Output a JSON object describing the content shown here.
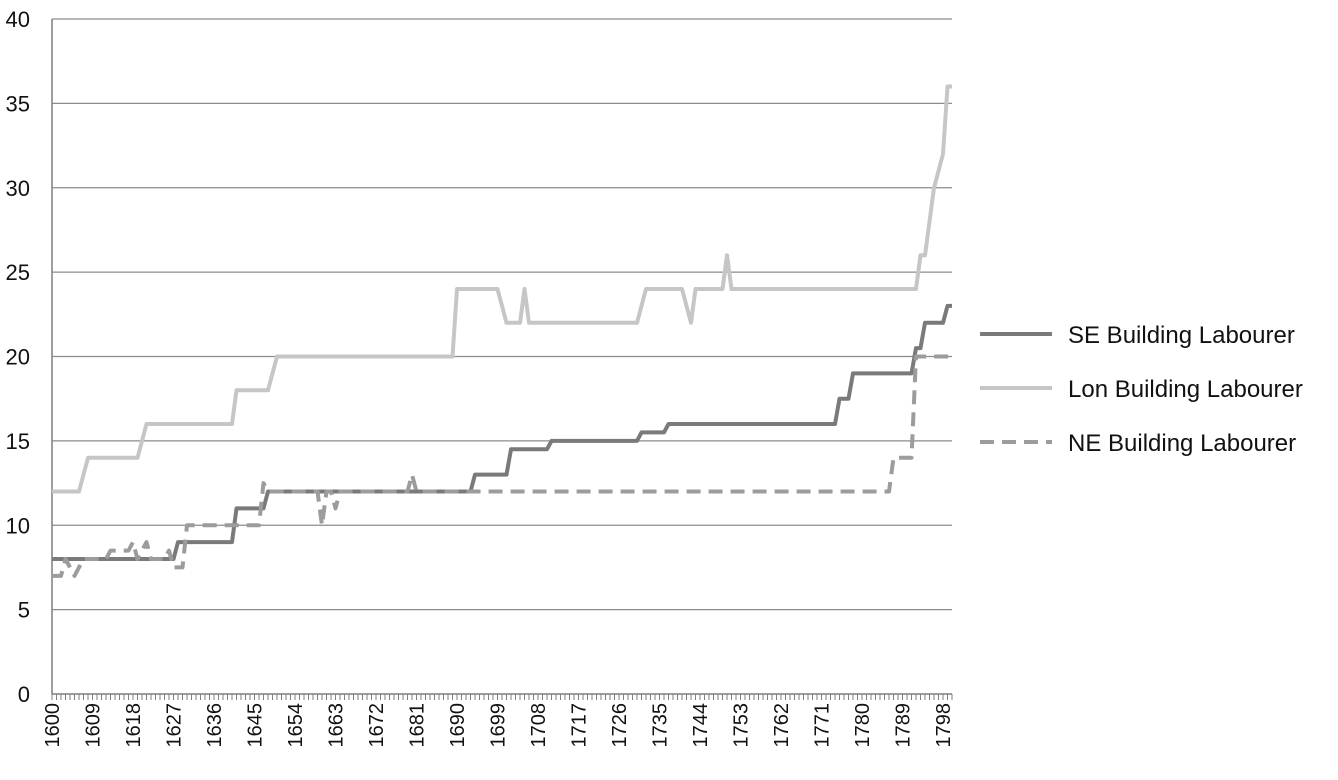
{
  "chart_data": {
    "type": "line",
    "title": "",
    "xlabel": "",
    "ylabel": "",
    "xlim": [
      1600,
      1800
    ],
    "ylim": [
      0,
      40
    ],
    "y_ticks": [
      0,
      5,
      10,
      15,
      20,
      25,
      30,
      35,
      40
    ],
    "x_tick_labels": [
      "1600",
      "1609",
      "1618",
      "1627",
      "1636",
      "1645",
      "1654",
      "1663",
      "1672",
      "1681",
      "1690",
      "1699",
      "1708",
      "1717",
      "1726",
      "1735",
      "1744",
      "1753",
      "1762",
      "1771",
      "1780",
      "1789",
      "1798"
    ],
    "grid": "horizontal",
    "legend_position": "right",
    "series": [
      {
        "name": "SE Building Labourer",
        "color": "#7a7a7a",
        "style": "solid",
        "points": [
          [
            1600,
            8
          ],
          [
            1627,
            8
          ],
          [
            1628,
            9
          ],
          [
            1640,
            9
          ],
          [
            1641,
            11
          ],
          [
            1647,
            11
          ],
          [
            1648,
            12
          ],
          [
            1693,
            12
          ],
          [
            1694,
            13
          ],
          [
            1701,
            13
          ],
          [
            1702,
            14.5
          ],
          [
            1710,
            14.5
          ],
          [
            1711,
            15
          ],
          [
            1730,
            15
          ],
          [
            1731,
            15.5
          ],
          [
            1736,
            15.5
          ],
          [
            1737,
            16
          ],
          [
            1774,
            16
          ],
          [
            1775,
            17.5
          ],
          [
            1777,
            17.5
          ],
          [
            1778,
            19
          ],
          [
            1791,
            19
          ],
          [
            1792,
            20.5
          ],
          [
            1793,
            20.5
          ],
          [
            1794,
            22
          ],
          [
            1798,
            22
          ],
          [
            1799,
            23
          ],
          [
            1800,
            23
          ]
        ]
      },
      {
        "name": "Lon Building Labourer",
        "color": "#c6c6c6",
        "style": "solid",
        "points": [
          [
            1600,
            12
          ],
          [
            1606,
            12
          ],
          [
            1608,
            14
          ],
          [
            1619,
            14
          ],
          [
            1621,
            16
          ],
          [
            1640,
            16
          ],
          [
            1641,
            18
          ],
          [
            1648,
            18
          ],
          [
            1650,
            20
          ],
          [
            1689,
            20
          ],
          [
            1690,
            24
          ],
          [
            1699,
            24
          ],
          [
            1701,
            22
          ],
          [
            1704,
            22
          ],
          [
            1705,
            24
          ],
          [
            1706,
            22
          ],
          [
            1730,
            22
          ],
          [
            1732,
            24
          ],
          [
            1740,
            24
          ],
          [
            1742,
            22
          ],
          [
            1743,
            24
          ],
          [
            1749,
            24
          ],
          [
            1750,
            26
          ],
          [
            1751,
            24
          ],
          [
            1792,
            24
          ],
          [
            1793,
            26
          ],
          [
            1794,
            26
          ],
          [
            1796,
            30
          ],
          [
            1798,
            32
          ],
          [
            1799,
            36
          ],
          [
            1800,
            36
          ]
        ]
      },
      {
        "name": "NE Building Labourer",
        "color": "#9c9c9c",
        "style": "dashed",
        "points": [
          [
            1600,
            7
          ],
          [
            1602,
            7
          ],
          [
            1603,
            8
          ],
          [
            1605,
            7
          ],
          [
            1607,
            8
          ],
          [
            1612,
            8
          ],
          [
            1613,
            8.5
          ],
          [
            1617,
            8.5
          ],
          [
            1618,
            9
          ],
          [
            1619,
            8
          ],
          [
            1621,
            9
          ],
          [
            1622,
            8
          ],
          [
            1625,
            8
          ],
          [
            1626,
            8.5
          ],
          [
            1627,
            7.5
          ],
          [
            1629,
            7.5
          ],
          [
            1630,
            10
          ],
          [
            1646,
            10
          ],
          [
            1647,
            12.5
          ],
          [
            1648,
            12
          ],
          [
            1659,
            12
          ],
          [
            1660,
            10
          ],
          [
            1661,
            12
          ],
          [
            1662,
            12
          ],
          [
            1663,
            11
          ],
          [
            1664,
            12
          ],
          [
            1679,
            12
          ],
          [
            1680,
            13
          ],
          [
            1681,
            12
          ],
          [
            1786,
            12
          ],
          [
            1787,
            14
          ],
          [
            1791,
            14
          ],
          [
            1792,
            20
          ],
          [
            1800,
            20
          ]
        ]
      }
    ]
  }
}
